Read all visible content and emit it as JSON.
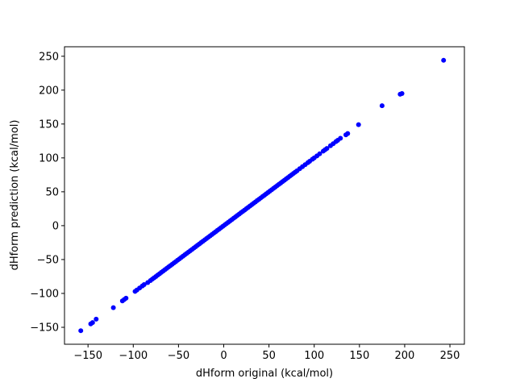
{
  "chart_data": {
    "type": "scatter",
    "title": "",
    "xlabel": "dHform original (kcal/mol)",
    "ylabel": "dHform prediction (kcal/mol)",
    "xlim": [
      -176,
      266
    ],
    "ylim": [
      -175,
      264
    ],
    "xticks": [
      -150,
      -100,
      -50,
      0,
      50,
      100,
      150,
      200,
      250
    ],
    "yticks": [
      -150,
      -100,
      -50,
      0,
      50,
      100,
      150,
      200,
      250
    ],
    "xtick_labels": [
      "−150",
      "−100",
      "−50",
      "0",
      "50",
      "100",
      "150",
      "200",
      "250"
    ],
    "ytick_labels": [
      "−150",
      "−100",
      "−50",
      "0",
      "50",
      "100",
      "150",
      "200",
      "250"
    ],
    "grid": false,
    "marker_color": "#0000ff",
    "series": [
      {
        "x": [
          -158,
          -147,
          -145,
          -141,
          -122,
          -112,
          -110,
          -108,
          -98,
          -96,
          -93,
          -90,
          -88,
          -84,
          -81,
          -79,
          -77,
          -75,
          -73,
          -71,
          -69,
          -67,
          -65,
          -63,
          -61,
          -59,
          -57,
          -55,
          -53,
          -51,
          -49,
          -47,
          -45,
          -43,
          -41,
          -39,
          -37,
          -35,
          -33,
          -31,
          -29,
          -27,
          -25,
          -23,
          -21,
          -19,
          -17,
          -15,
          -13,
          -11,
          -9,
          -7,
          -5,
          -3,
          -1,
          1,
          3,
          5,
          7,
          9,
          11,
          13,
          15,
          17,
          19,
          21,
          23,
          25,
          27,
          29,
          31,
          33,
          35,
          37,
          39,
          41,
          43,
          45,
          47,
          49,
          51,
          53,
          55,
          57,
          59,
          61,
          63,
          65,
          67,
          69,
          71,
          73,
          75,
          77,
          79,
          81,
          84,
          87,
          90,
          93,
          95,
          98,
          100,
          103,
          106,
          110,
          112,
          114,
          118,
          121,
          124,
          126,
          129,
          135,
          137,
          149,
          175,
          195,
          197,
          243
        ],
        "y": [
          -155,
          -145,
          -143,
          -138,
          -121,
          -111,
          -109,
          -107,
          -97,
          -95,
          -92,
          -89,
          -87,
          -84,
          -81,
          -79,
          -77,
          -75,
          -73,
          -71,
          -69,
          -67,
          -65,
          -63,
          -61,
          -59,
          -57,
          -55,
          -53,
          -51,
          -49,
          -47,
          -45,
          -43,
          -41,
          -39,
          -37,
          -35,
          -33,
          -31,
          -29,
          -27,
          -25,
          -23,
          -21,
          -19,
          -17,
          -15,
          -13,
          -11,
          -9,
          -7,
          -5,
          -3,
          -1,
          1,
          3,
          5,
          7,
          9,
          11,
          13,
          15,
          17,
          19,
          21,
          23,
          25,
          27,
          29,
          31,
          33,
          35,
          37,
          39,
          41,
          43,
          45,
          47,
          49,
          51,
          53,
          55,
          57,
          59,
          61,
          63,
          65,
          67,
          69,
          71,
          73,
          75,
          77,
          79,
          81,
          84,
          87,
          90,
          93,
          95,
          98,
          100,
          103,
          106,
          110,
          112,
          114,
          118,
          121,
          124,
          126,
          129,
          134,
          136,
          149,
          177,
          194,
          195,
          244
        ]
      }
    ]
  }
}
